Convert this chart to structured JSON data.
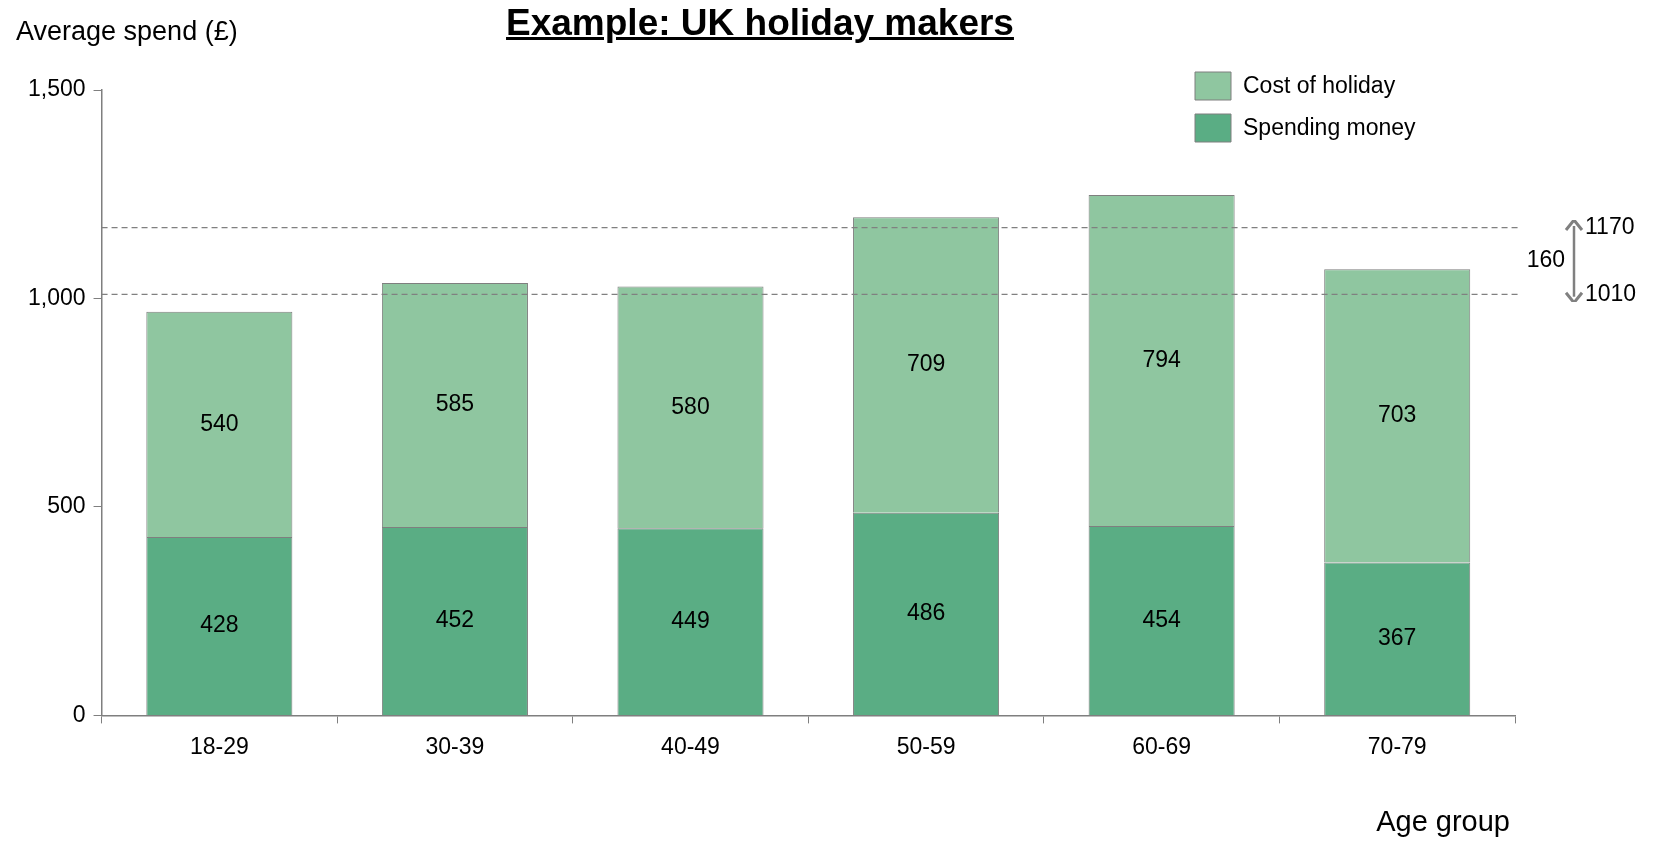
{
  "chart_data": {
    "type": "bar",
    "title": "Example: UK holiday makers",
    "ylabel": "Average spend (£)",
    "xlabel": "Age group",
    "categories": [
      "18-29",
      "30-39",
      "40-49",
      "50-59",
      "60-69",
      "70-79"
    ],
    "stacked": true,
    "series": [
      {
        "name": "Spending money",
        "color": "#5aad84",
        "values": [
          428,
          452,
          449,
          486,
          454,
          367
        ]
      },
      {
        "name": "Cost of holiday",
        "color": "#8fc6a0",
        "values": [
          540,
          585,
          580,
          709,
          794,
          703
        ]
      }
    ],
    "ylim": [
      0,
      1500
    ],
    "yticks": [
      0,
      500,
      {
        "value": 1000,
        "label": "1,000"
      },
      {
        "value": 1500,
        "label": "1,500"
      }
    ],
    "ref_lines": [
      {
        "axis": "y",
        "value": 1010,
        "label": "1010",
        "color": "#808080",
        "line_style": "dashed"
      },
      {
        "axis": "y",
        "value": 1170,
        "label": "1170",
        "color": "#808080",
        "line_style": "dashed"
      }
    ],
    "annotations": [
      "160"
    ],
    "data_labels": true,
    "grid": false,
    "legend": "top right"
  }
}
